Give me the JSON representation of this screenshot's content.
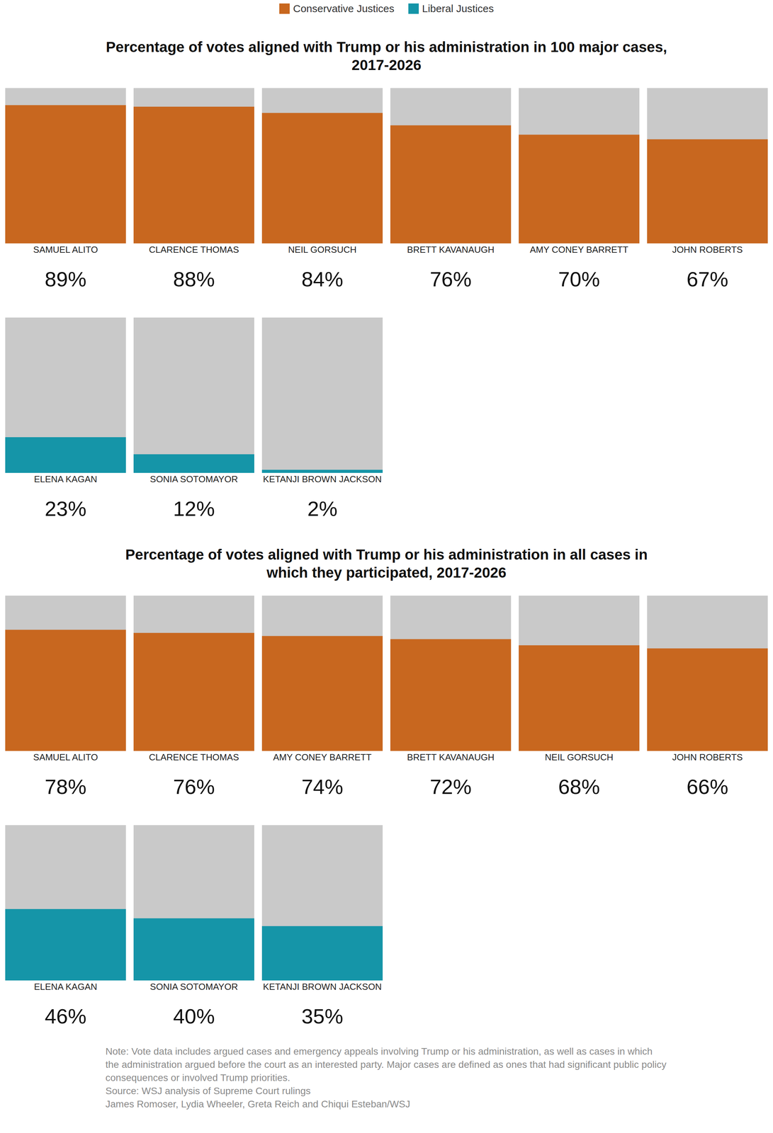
{
  "chart_data": [
    {
      "type": "bar",
      "title": "Percentage of votes aligned with Trump or his administration in 100 major cases, 2017-2026",
      "categories": [
        "SAMUEL ALITO",
        "CLARENCE THOMAS",
        "NEIL GORSUCH",
        "BRETT KAVANAUGH",
        "AMY CONEY BARRETT",
        "JOHN ROBERTS",
        "ELENA KAGAN",
        "SONIA SOTOMAYOR",
        "KETANJI BROWN JACKSON"
      ],
      "series": [
        {
          "name": "Conservative Justices",
          "color": "#c8671f",
          "values": [
            89,
            88,
            84,
            76,
            70,
            67,
            null,
            null,
            null
          ],
          "value_labels": [
            "89%",
            "88%",
            "84%",
            "76%",
            "70%",
            "67%",
            null,
            null,
            null
          ]
        },
        {
          "name": "Liberal Justices",
          "color": "#1595a8",
          "values": [
            null,
            null,
            null,
            null,
            null,
            null,
            23,
            12,
            2
          ],
          "value_labels": [
            null,
            null,
            null,
            null,
            null,
            null,
            "23%",
            "12%",
            "2%"
          ]
        }
      ],
      "ylim": [
        0,
        100
      ],
      "grid": false,
      "data_labels": true,
      "tick_labels": "x",
      "legend": "top"
    },
    {
      "type": "bar",
      "title": "Percentage of votes aligned with Trump or his administration in all cases in which they participated, 2017-2026",
      "categories": [
        "SAMUEL ALITO",
        "CLARENCE THOMAS",
        "AMY CONEY BARRETT",
        "BRETT KAVANAUGH",
        "NEIL GORSUCH",
        "JOHN ROBERTS",
        "ELENA KAGAN",
        "SONIA SOTOMAYOR",
        "KETANJI BROWN JACKSON"
      ],
      "series": [
        {
          "name": "Conservative Justices",
          "color": "#c8671f",
          "values": [
            78,
            76,
            74,
            72,
            68,
            66,
            null,
            null,
            null
          ],
          "value_labels": [
            "78%",
            "76%",
            "74%",
            "72%",
            "68%",
            "66%",
            null,
            null,
            null
          ]
        },
        {
          "name": "Liberal Justices",
          "color": "#1595a8",
          "values": [
            null,
            null,
            null,
            null,
            null,
            null,
            46,
            40,
            35
          ],
          "value_labels": [
            null,
            null,
            null,
            null,
            null,
            null,
            "46%",
            "40%",
            "35%"
          ]
        }
      ],
      "ylim": [
        0,
        100
      ],
      "grid": false,
      "data_labels": true,
      "tick_labels": "x"
    }
  ],
  "notes": {
    "note": "Note: Vote data includes argued cases and emergency appeals involving Trump or his administration, as well as cases in which the administration argued before the court as an interested party. Major cases are defined as ones that had significant public policy consequences or involved Trump priorities.",
    "source": "Source: WSJ analysis of Supreme Court rulings",
    "credit": "James Romoser, Lydia Wheeler, Greta Reich and Chiqui Esteban/WSJ"
  }
}
